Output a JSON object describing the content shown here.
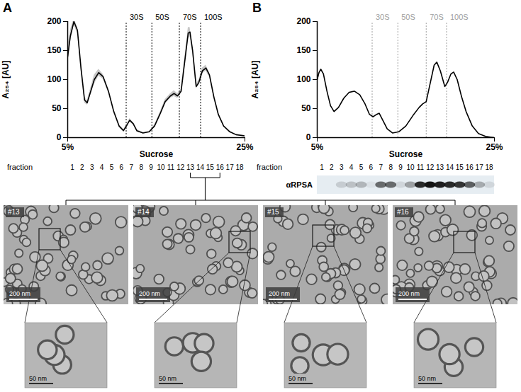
{
  "chart_data": [
    {
      "type": "line",
      "panel": "A",
      "x_label": "Sucrose",
      "y_label": "A₂₅₄ [AU]",
      "grid": false,
      "xlim": [
        5,
        25
      ],
      "xticks": [
        {
          "value": 5,
          "label": "5%"
        },
        {
          "value": 25,
          "label": "25%"
        }
      ],
      "ylim": [
        0,
        200
      ],
      "yticks": [
        0,
        50,
        100,
        150,
        200
      ],
      "x": [
        5.0,
        5.3,
        5.7,
        6.1,
        6.5,
        6.9,
        7.2,
        7.6,
        8.0,
        8.5,
        9.0,
        9.6,
        10.2,
        10.8,
        11.3,
        11.7,
        12.0,
        12.4,
        12.8,
        13.5,
        14.2,
        14.8,
        15.4,
        16.0,
        16.6,
        17.0,
        17.4,
        17.8,
        18.2,
        18.6,
        18.8,
        19.1,
        19.5,
        19.8,
        20.2,
        20.6,
        21.0,
        21.5,
        22.0,
        22.6,
        23.3,
        24.0,
        25.0
      ],
      "series": [
        {
          "color": "#000000",
          "values": [
            140,
            175,
            200,
            185,
            120,
            65,
            60,
            80,
            100,
            112,
            105,
            80,
            45,
            20,
            12,
            22,
            30,
            24,
            12,
            8,
            10,
            20,
            40,
            62,
            72,
            76,
            72,
            80,
            130,
            180,
            182,
            150,
            88,
            95,
            115,
            120,
            108,
            70,
            40,
            20,
            10,
            5,
            3
          ],
          "sd": [
            15,
            10,
            6,
            5,
            6,
            5,
            4,
            6,
            8,
            6,
            4,
            3,
            3,
            2,
            2,
            2,
            3,
            2,
            2,
            1,
            1,
            2,
            3,
            4,
            4,
            5,
            4,
            4,
            8,
            10,
            8,
            6,
            4,
            4,
            5,
            5,
            4,
            3,
            2,
            1,
            1,
            1,
            1
          ]
        }
      ],
      "annotations": [
        {
          "x": 11.6,
          "label": "30S",
          "color": "#000000"
        },
        {
          "x": 14.5,
          "label": "50S",
          "color": "#000000"
        },
        {
          "x": 17.6,
          "label": "70S",
          "color": "#000000"
        },
        {
          "x": 20.0,
          "label": "100S",
          "color": "#000000"
        }
      ],
      "fraction_label": "fraction",
      "fractions": [
        1,
        2,
        3,
        4,
        5,
        6,
        7,
        8,
        9,
        10,
        11,
        12,
        13,
        14,
        15,
        16,
        17,
        18
      ]
    },
    {
      "type": "line",
      "panel": "B",
      "x_label": "Sucrose",
      "y_label": "A₂₅₄ [AU]",
      "grid": false,
      "xlim": [
        5,
        25
      ],
      "xticks": [
        {
          "value": 5,
          "label": "5%"
        },
        {
          "value": 25,
          "label": "25%"
        }
      ],
      "ylim": [
        0,
        200
      ],
      "yticks": [
        0,
        50,
        100,
        150,
        200
      ],
      "x": [
        5.0,
        5.2,
        5.4,
        5.7,
        6.1,
        6.5,
        6.9,
        7.4,
        8.0,
        8.6,
        9.2,
        9.8,
        10.4,
        10.9,
        11.3,
        11.7,
        12.0,
        12.4,
        12.9,
        13.5,
        14.2,
        15.0,
        15.8,
        16.5,
        16.9,
        17.3,
        17.7,
        18.2,
        18.5,
        18.9,
        19.4,
        19.7,
        20.1,
        20.4,
        20.8,
        21.3,
        21.8,
        22.5,
        23.2,
        24.0,
        25.0
      ],
      "series": [
        {
          "color": "#000000",
          "values": [
            100,
            112,
            118,
            110,
            80,
            55,
            45,
            52,
            68,
            78,
            80,
            74,
            58,
            40,
            36,
            40,
            42,
            30,
            15,
            8,
            10,
            20,
            38,
            52,
            58,
            62,
            90,
            125,
            130,
            115,
            88,
            95,
            110,
            113,
            100,
            70,
            45,
            20,
            7,
            2,
            0
          ]
        }
      ],
      "annotations": [
        {
          "x": 11.2,
          "label": "30S",
          "color": "#a0a0a0"
        },
        {
          "x": 14.1,
          "label": "50S",
          "color": "#a0a0a0"
        },
        {
          "x": 17.3,
          "label": "70S",
          "color": "#a0a0a0"
        },
        {
          "x": 19.6,
          "label": "100S",
          "color": "#a0a0a0"
        }
      ],
      "fraction_label": "fraction",
      "fractions": [
        1,
        2,
        3,
        4,
        5,
        6,
        7,
        8,
        9,
        10,
        11,
        12,
        13,
        14,
        15,
        16,
        17,
        18
      ],
      "blot_label": "αRPSA",
      "blot_intensity": [
        0,
        0,
        0.15,
        0.2,
        0.25,
        0.05,
        0.6,
        0.6,
        0.1,
        0.35,
        0.9,
        1,
        0.95,
        0.9,
        0.85,
        0.65,
        0.3,
        0.1
      ]
    }
  ],
  "micrographs": {
    "fraction_range": [
      13,
      16
    ],
    "panels": [
      "#13",
      "#14",
      "#15",
      "#16"
    ],
    "scale_label": "200 nm",
    "zoom_scale_label": "50 nm"
  }
}
